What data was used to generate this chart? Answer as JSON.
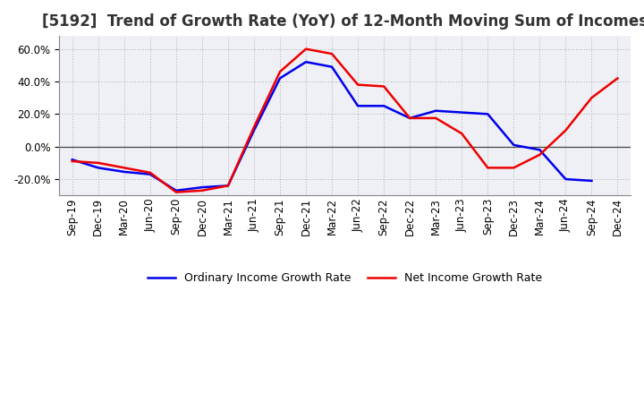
{
  "title": "[5192]  Trend of Growth Rate (YoY) of 12-Month Moving Sum of Incomes",
  "x_labels": [
    "Sep-19",
    "Dec-19",
    "Mar-20",
    "Jun-20",
    "Sep-20",
    "Dec-20",
    "Mar-21",
    "Jun-21",
    "Sep-21",
    "Dec-21",
    "Mar-22",
    "Jun-22",
    "Sep-22",
    "Dec-22",
    "Mar-23",
    "Jun-23",
    "Sep-23",
    "Dec-23",
    "Mar-24",
    "Jun-24",
    "Sep-24",
    "Dec-24"
  ],
  "ordinary_income": [
    -0.08,
    -0.13,
    -0.155,
    -0.17,
    -0.27,
    -0.25,
    -0.24,
    0.1,
    0.42,
    0.52,
    0.49,
    0.25,
    0.25,
    0.175,
    0.22,
    0.21,
    0.2,
    0.01,
    -0.02,
    -0.2,
    -0.21,
    null
  ],
  "net_income": [
    -0.09,
    -0.1,
    -0.13,
    -0.16,
    -0.28,
    -0.27,
    -0.24,
    0.12,
    0.46,
    0.6,
    0.57,
    0.38,
    0.37,
    0.175,
    0.175,
    0.08,
    -0.13,
    -0.13,
    -0.05,
    0.1,
    0.3,
    0.42
  ],
  "ordinary_color": "#0000ee",
  "net_color": "#ee0000",
  "ylim": [
    -0.3,
    0.68
  ],
  "yticks": [
    -0.2,
    0.0,
    0.2,
    0.4,
    0.6
  ],
  "grid_color": "#aaaaaa",
  "plot_bg_color": "#eef0f5",
  "fig_bg_color": "#ffffff",
  "legend_ordinary": "Ordinary Income Growth Rate",
  "legend_net": "Net Income Growth Rate",
  "title_fontsize": 12,
  "tick_fontsize": 8.5,
  "legend_fontsize": 9
}
